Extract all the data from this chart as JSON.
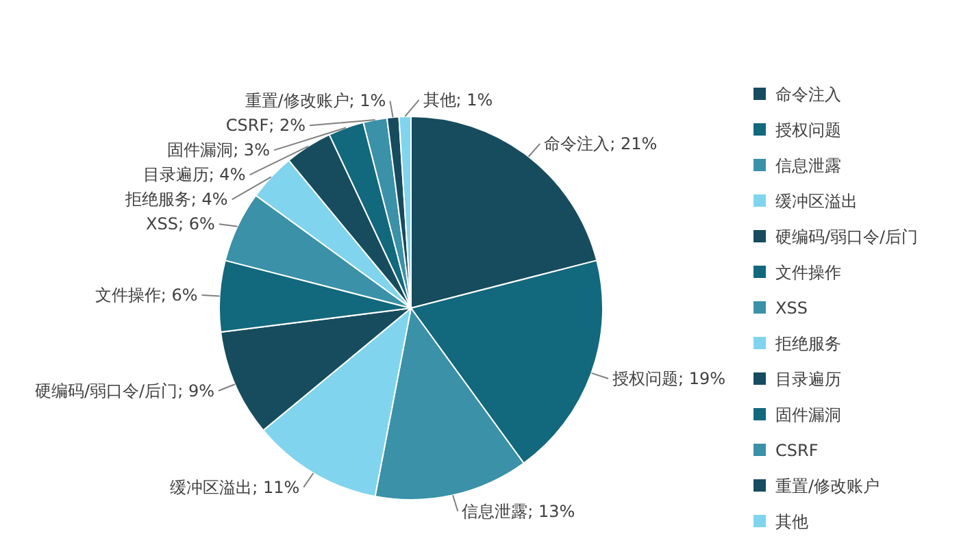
{
  "chart_data": {
    "type": "pie",
    "categories": [
      "命令注入",
      "授权问题",
      "信息泄露",
      "缓冲区溢出",
      "硬编码/弱口令/后门",
      "文件操作",
      "XSS",
      "拒绝服务",
      "目录遍历",
      "固件漏洞",
      "CSRF",
      "重置/修改账户",
      "其他"
    ],
    "values": [
      21,
      19,
      13,
      11,
      9,
      6,
      6,
      4,
      4,
      3,
      2,
      1,
      1
    ],
    "value_labels": [
      "命令注入; 21%",
      "授权问题; 19%",
      "信息泄露; 13%",
      "缓冲区溢出; 11%",
      "硬编码/弱口令/后门; 9%",
      "文件操作; 6%",
      "XSS; 6%",
      "拒绝服务; 4%",
      "目录遍历; 4%",
      "固件漏洞; 3%",
      "CSRF; 2%",
      "重置/修改账户; 1%",
      "其他; 1%"
    ],
    "colors": [
      "#164c5e",
      "#12687c",
      "#3a91a8",
      "#80d4ee",
      "#164c5e",
      "#12687c",
      "#3a91a8",
      "#80d4ee",
      "#164c5e",
      "#12687c",
      "#3a91a8",
      "#164c5e",
      "#80d4ee"
    ],
    "legend": "right"
  }
}
